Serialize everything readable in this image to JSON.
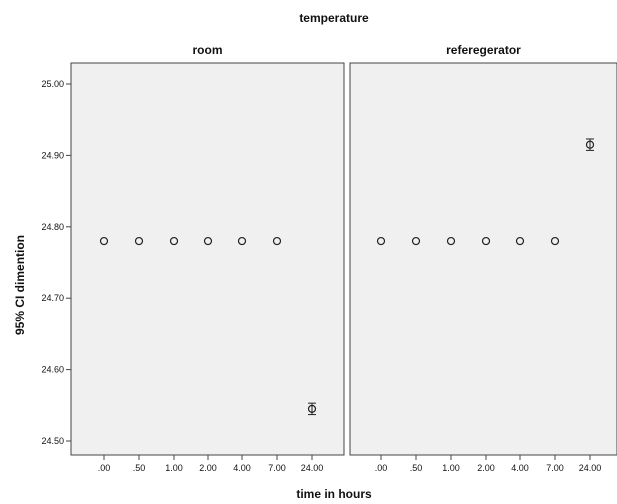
{
  "chart_data": {
    "type": "scatter",
    "title": "temperature",
    "xlabel": "time in hours",
    "ylabel": "95% CI dimention",
    "categories": [
      ".00",
      ".50",
      "1.00",
      "2.00",
      "4.00",
      "7.00",
      "24.00"
    ],
    "ylim": [
      24.48,
      25.02
    ],
    "yticks": [
      "24.50",
      "24.60",
      "24.70",
      "24.80",
      "24.90",
      "25.00"
    ],
    "ytick_values": [
      24.5,
      24.6,
      24.7,
      24.8,
      24.9,
      25.0
    ],
    "grid": false,
    "panels": [
      {
        "name": "room",
        "values": [
          24.78,
          24.78,
          24.78,
          24.78,
          24.78,
          24.78,
          24.545
        ],
        "ci_low": [
          24.78,
          24.78,
          24.78,
          24.78,
          24.78,
          24.78,
          24.537
        ],
        "ci_high": [
          24.78,
          24.78,
          24.78,
          24.78,
          24.78,
          24.78,
          24.553
        ]
      },
      {
        "name": "referegerator",
        "values": [
          24.78,
          24.78,
          24.78,
          24.78,
          24.78,
          24.78,
          24.915
        ],
        "ci_low": [
          24.78,
          24.78,
          24.78,
          24.78,
          24.78,
          24.78,
          24.907
        ],
        "ci_high": [
          24.78,
          24.78,
          24.78,
          24.78,
          24.78,
          24.78,
          24.923
        ]
      }
    ]
  },
  "colors": {
    "panel_bg": "#f0f0f0",
    "frame": "#444444",
    "marker": "#222222"
  }
}
